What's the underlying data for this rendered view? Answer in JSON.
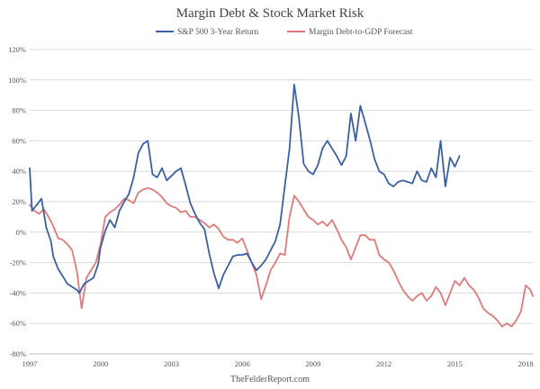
{
  "chart_data": {
    "type": "line",
    "title": "Margin Debt & Stock Market Risk",
    "footer": "TheFelderReport.com",
    "xlabel": "",
    "ylabel": "",
    "x_range": [
      1997,
      2018.3
    ],
    "ylim": [
      -80,
      120
    ],
    "y_ticks": [
      -80,
      -60,
      -40,
      -20,
      0,
      20,
      40,
      60,
      80,
      100,
      120
    ],
    "y_tick_labels": [
      "-80%",
      "-60%",
      "-40%",
      "-20%",
      "0%",
      "20%",
      "40%",
      "60%",
      "80%",
      "100%",
      "120%"
    ],
    "x_ticks": [
      1997,
      2000,
      2003,
      2006,
      2009,
      2012,
      2015,
      2018
    ],
    "x_tick_labels": [
      "1997",
      "2000",
      "2003",
      "2006",
      "2009",
      "2012",
      "2015",
      "2018"
    ],
    "grid": "horizontal",
    "legend_position": "top",
    "series": [
      {
        "name": "S&P 500 3-Year Return",
        "color": "#3b5fa3",
        "x": [
          1997.0,
          1997.1,
          1997.3,
          1997.5,
          1997.7,
          1997.9,
          1998.0,
          1998.2,
          1998.4,
          1998.6,
          1998.8,
          1999.0,
          1999.1,
          1999.3,
          1999.5,
          1999.7,
          1999.9,
          2000.0,
          2000.2,
          2000.4,
          2000.6,
          2000.8,
          2001.0,
          2001.2,
          2001.4,
          2001.6,
          2001.8,
          2002.0,
          2002.2,
          2002.4,
          2002.6,
          2002.8,
          2003.0,
          2003.2,
          2003.4,
          2003.6,
          2003.8,
          2004.0,
          2004.2,
          2004.4,
          2004.6,
          2004.8,
          2005.0,
          2005.2,
          2005.4,
          2005.6,
          2005.8,
          2006.0,
          2006.2,
          2006.4,
          2006.6,
          2006.8,
          2007.0,
          2007.2,
          2007.4,
          2007.6,
          2007.8,
          2008.0,
          2008.2,
          2008.4,
          2008.6,
          2008.8,
          2009.0,
          2009.2,
          2009.4,
          2009.6,
          2009.8,
          2010.0,
          2010.2,
          2010.4,
          2010.6,
          2010.8,
          2011.0,
          2011.2,
          2011.4,
          2011.6,
          2011.8,
          2012.0,
          2012.2,
          2012.4,
          2012.6,
          2012.8,
          2013.0,
          2013.2,
          2013.4,
          2013.6,
          2013.8,
          2014.0,
          2014.2,
          2014.4,
          2014.6,
          2014.8,
          2015.0,
          2015.2
        ],
        "values": [
          42,
          14,
          18,
          22,
          3,
          -6,
          -16,
          -24,
          -29,
          -34,
          -36,
          -38,
          -40,
          -34,
          -32,
          -30,
          -21,
          -10,
          1,
          8,
          3,
          14,
          20,
          25,
          36,
          52,
          58,
          60,
          38,
          36,
          42,
          34,
          37,
          40,
          42,
          31,
          19,
          12,
          6,
          2,
          -14,
          -27,
          -37,
          -28,
          -22,
          -16,
          -15,
          -15,
          -14,
          -20,
          -25,
          -22,
          -18,
          -12,
          -6,
          5,
          30,
          55,
          97,
          75,
          45,
          40,
          38,
          44,
          55,
          60,
          55,
          50,
          44,
          50,
          78,
          60,
          83,
          72,
          61,
          48,
          40,
          38,
          32,
          30,
          33,
          34,
          33,
          32,
          40,
          34,
          33,
          42,
          36,
          60,
          30,
          49,
          43,
          50
        ]
      },
      {
        "name": "Margin Debt-to-GDP Forecast",
        "color": "#e07a7a",
        "x": [
          1997.0,
          1997.2,
          1997.4,
          1997.6,
          1997.8,
          1998.0,
          1998.2,
          1998.4,
          1998.6,
          1998.8,
          1999.0,
          1999.2,
          1999.4,
          1999.6,
          1999.8,
          2000.0,
          2000.2,
          2000.4,
          2000.6,
          2000.8,
          2001.0,
          2001.2,
          2001.4,
          2001.6,
          2001.8,
          2002.0,
          2002.2,
          2002.4,
          2002.6,
          2002.8,
          2003.0,
          2003.2,
          2003.4,
          2003.6,
          2003.8,
          2004.0,
          2004.2,
          2004.4,
          2004.6,
          2004.8,
          2005.0,
          2005.2,
          2005.4,
          2005.6,
          2005.8,
          2006.0,
          2006.2,
          2006.4,
          2006.6,
          2006.8,
          2007.0,
          2007.2,
          2007.4,
          2007.6,
          2007.8,
          2008.0,
          2008.2,
          2008.4,
          2008.6,
          2008.8,
          2009.0,
          2009.2,
          2009.4,
          2009.6,
          2009.8,
          2010.0,
          2010.2,
          2010.4,
          2010.6,
          2010.8,
          2011.0,
          2011.2,
          2011.4,
          2011.6,
          2011.8,
          2012.0,
          2012.2,
          2012.4,
          2012.6,
          2012.8,
          2013.0,
          2013.2,
          2013.4,
          2013.6,
          2013.8,
          2014.0,
          2014.2,
          2014.4,
          2014.6,
          2014.8,
          2015.0,
          2015.2,
          2015.4,
          2015.6,
          2015.8,
          2016.0,
          2016.2,
          2016.4,
          2016.6,
          2016.8,
          2017.0,
          2017.2,
          2017.4,
          2017.6,
          2017.8,
          2018.0,
          2018.2,
          2018.3
        ],
        "values": [
          18,
          14,
          12,
          15,
          10,
          4,
          -4,
          -5,
          -8,
          -12,
          -26,
          -50,
          -30,
          -25,
          -20,
          -8,
          10,
          13,
          15,
          18,
          22,
          21,
          19,
          26,
          28,
          29,
          28,
          26,
          23,
          19,
          17,
          16,
          13,
          14,
          10,
          10,
          8,
          6,
          3,
          5,
          2,
          -3,
          -5,
          -5,
          -7,
          -4,
          -12,
          -20,
          -28,
          -44,
          -35,
          -25,
          -20,
          -14,
          -15,
          10,
          24,
          20,
          15,
          10,
          8,
          5,
          7,
          4,
          8,
          2,
          -5,
          -10,
          -18,
          -10,
          -2,
          -2,
          -5,
          -5,
          -15,
          -18,
          -20,
          -25,
          -32,
          -38,
          -42,
          -45,
          -42,
          -40,
          -45,
          -42,
          -36,
          -40,
          -48,
          -40,
          -32,
          -35,
          -30,
          -35,
          -38,
          -43,
          -50,
          -53,
          -55,
          -58,
          -62,
          -60,
          -62,
          -58,
          -52,
          -35,
          -38,
          -42
        ]
      }
    ]
  }
}
